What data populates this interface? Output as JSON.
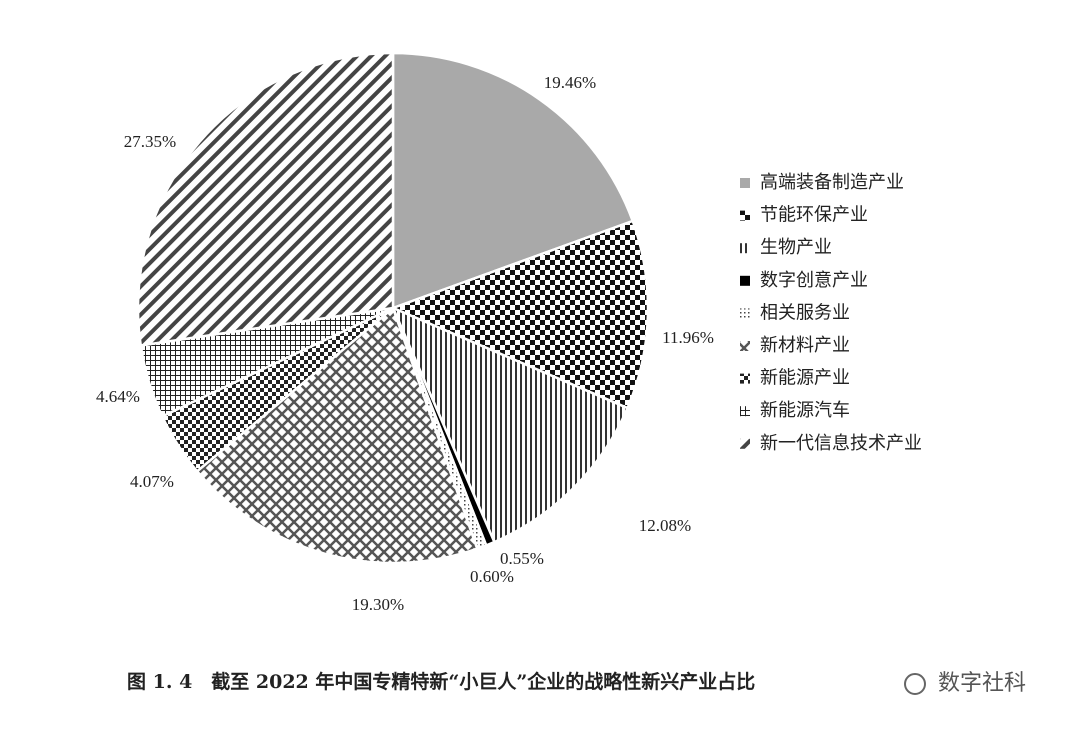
{
  "chart_data": {
    "type": "pie",
    "caption": "图 1. 4　截至 2022 年中国专精特新“小巨人”企业的战略性新兴产业占比",
    "watermark": "数字社科",
    "categories": [
      "高端装备制造产业",
      "节能环保产业",
      "生物产业",
      "数字创意产业",
      "相关服务业",
      "新材料产业",
      "新能源产业",
      "新能源汽车",
      "新一代信息技术产业"
    ],
    "values": [
      19.46,
      11.96,
      12.08,
      0.55,
      0.6,
      19.3,
      4.07,
      4.64,
      27.35
    ],
    "value_labels": [
      "19.46%",
      "11.96%",
      "12.08%",
      "0.55%",
      "0.60%",
      "19.30%",
      "4.07%",
      "4.64%",
      "27.35%"
    ],
    "legend": "right"
  }
}
